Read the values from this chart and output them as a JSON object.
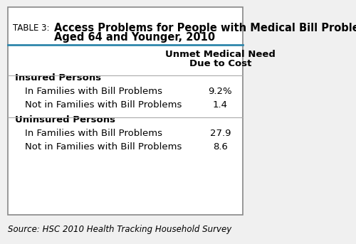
{
  "table_label": "TABLE 3:",
  "title_line1": "Access Problems for People with Medical Bill Problems",
  "title_line2": "Aged 64 and Younger, 2010",
  "column_header_line1": "Unmet Medical Need",
  "column_header_line2": "Due to Cost",
  "sections": [
    {
      "header": "Insured Persons",
      "rows": [
        {
          "label": "In Families with Bill Problems",
          "value": "9.2%"
        },
        {
          "label": "Not in Families with Bill Problems",
          "value": "1.4"
        }
      ]
    },
    {
      "header": "Uninsured Persons",
      "rows": [
        {
          "label": "In Families with Bill Problems",
          "value": "27.9"
        },
        {
          "label": "Not in Families with Bill Problems",
          "value": "8.6"
        }
      ]
    }
  ],
  "source": "Source: HSC 2010 Health Tracking Household Survey",
  "border_color": "#888888",
  "header_line_color": "#2e86ab",
  "separator_color": "#aaaaaa",
  "bg_color": "#ffffff",
  "outer_bg": "#f0f0f0",
  "title_fontsize": 10.5,
  "label_fontsize": 9.5,
  "header_fontsize": 9.5,
  "source_fontsize": 8.5,
  "col_header_fontsize": 9.5
}
